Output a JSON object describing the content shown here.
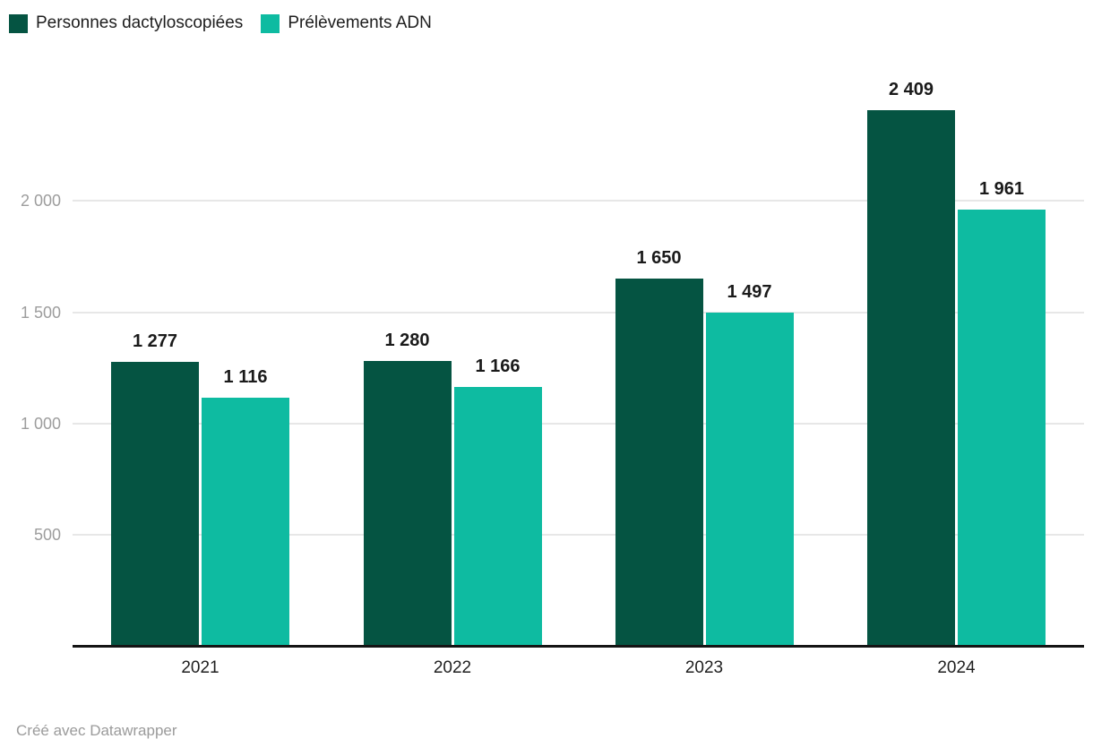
{
  "chart_data": {
    "type": "bar",
    "title": "",
    "xlabel": "",
    "ylabel": "",
    "categories": [
      "2021",
      "2022",
      "2023",
      "2024"
    ],
    "series": [
      {
        "name": "Personnes dactyloscopiées",
        "color": "#055442",
        "values": [
          1277,
          1280,
          1650,
          2409
        ],
        "value_labels": [
          "1 277",
          "1 280",
          "1 650",
          "2 409"
        ]
      },
      {
        "name": "Prélèvements ADN",
        "color": "#0ebba1",
        "values": [
          1116,
          1166,
          1497,
          1961
        ],
        "value_labels": [
          "1 116",
          "1 166",
          "1 497",
          "1 961"
        ]
      }
    ],
    "y_ticks": [
      {
        "value": 500,
        "label": "500"
      },
      {
        "value": 1000,
        "label": "1 000"
      },
      {
        "value": 1500,
        "label": "1 500"
      },
      {
        "value": 2000,
        "label": "2 000"
      }
    ],
    "ylim": [
      0,
      2420
    ],
    "grid": "horizontal",
    "legend_position": "top-left",
    "colors": {
      "grid": "#e7e7e7",
      "axis": "#141414",
      "tick_text": "#9d9d9d",
      "label_text": "#1a1a1a"
    }
  },
  "footer": {
    "credit": "Créé avec Datawrapper"
  }
}
